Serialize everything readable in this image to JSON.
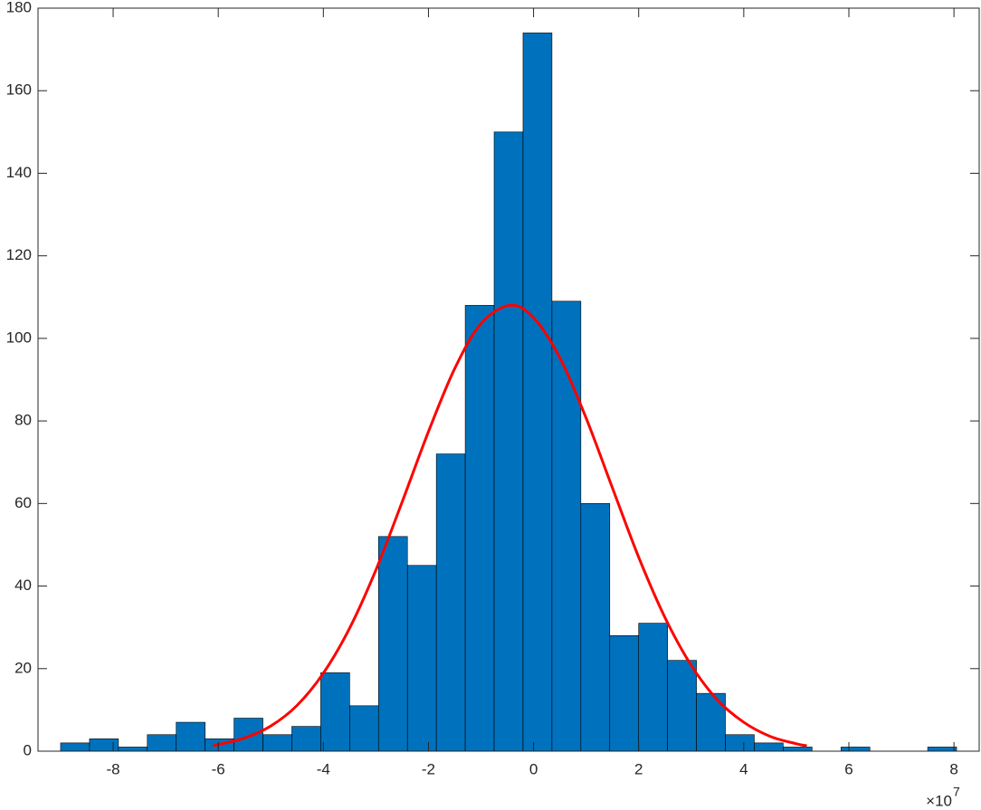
{
  "chart_data": {
    "type": "histogram",
    "bins": [
      -9,
      -8.45,
      -7.9,
      -7.35,
      -6.8,
      -6.25,
      -5.7,
      -5.15,
      -4.6,
      -4.05,
      -3.5,
      -2.95,
      -2.4,
      -1.85,
      -1.3,
      -0.75,
      -0.2,
      0.35,
      0.9,
      1.45,
      2.0,
      2.55,
      3.1,
      3.65,
      4.2,
      4.75,
      5.3,
      5.85,
      6.4,
      6.95,
      7.5,
      8.05
    ],
    "values": [
      2,
      3,
      1,
      4,
      7,
      3,
      8,
      4,
      6,
      19,
      11,
      52,
      45,
      72,
      108,
      150,
      174,
      109,
      60,
      28,
      31,
      22,
      14,
      4,
      2,
      1,
      0,
      1,
      0,
      0,
      1
    ],
    "color": "#0072bd",
    "fit": {
      "type": "line",
      "color": "#ff0000",
      "x": [
        -6.1,
        -5.5,
        -5,
        -4.5,
        -4,
        -3.5,
        -3,
        -2.5,
        -2,
        -1.5,
        -1,
        -0.45,
        0,
        0.5,
        1,
        1.5,
        2,
        2.5,
        3,
        3.5,
        4,
        4.5,
        5,
        5.2
      ],
      "values": [
        1.3,
        3.2,
        6.1,
        11.1,
        18.9,
        29.8,
        43.9,
        60.4,
        77.4,
        92.7,
        103.6,
        108,
        105.0,
        95.3,
        80.7,
        63.8,
        47.0,
        32.4,
        20.8,
        12.4,
        7.0,
        3.6,
        1.8,
        1.3
      ]
    },
    "xlim": [
      -9.43,
      8.48
    ],
    "ylim": [
      0,
      180
    ],
    "xticks": [
      -8,
      -6,
      -4,
      -2,
      0,
      2,
      4,
      6,
      8
    ],
    "yticks": [
      0,
      20,
      40,
      60,
      80,
      100,
      120,
      140,
      160,
      180
    ],
    "x_exponent": {
      "base": "×10",
      "power": "7"
    }
  }
}
